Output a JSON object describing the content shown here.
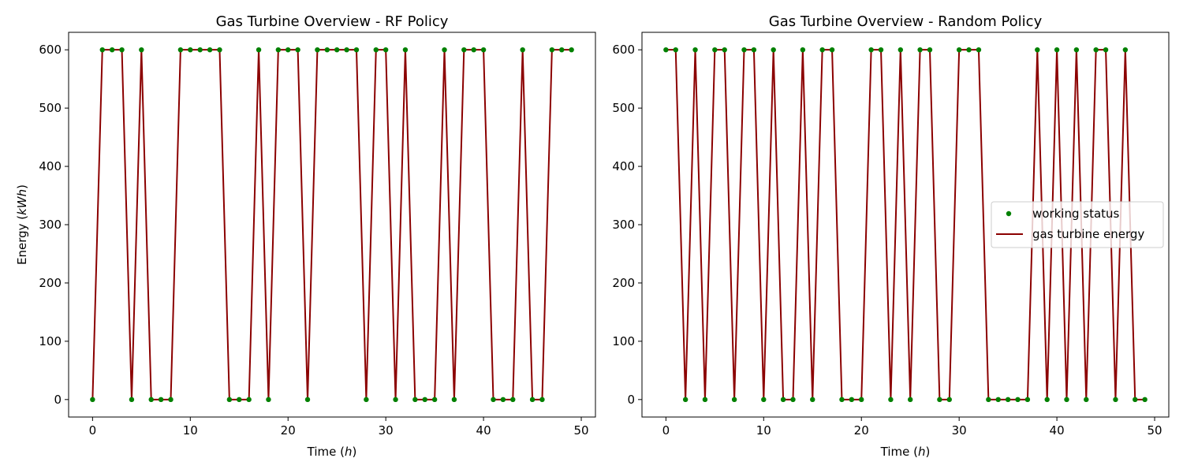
{
  "chart_data": [
    {
      "type": "line",
      "title": "Gas Turbine Overview - RF Policy",
      "xlabel": "Time",
      "xlabel_unit": "h",
      "ylabel": "Energy",
      "ylabel_unit": "kWh",
      "xlim": [
        -2.45,
        51.45
      ],
      "ylim": [
        -30,
        630
      ],
      "xticks": [
        0,
        10,
        20,
        30,
        40,
        50
      ],
      "yticks": [
        0,
        100,
        200,
        300,
        400,
        500,
        600
      ],
      "x": [
        0,
        1,
        2,
        3,
        4,
        5,
        6,
        7,
        8,
        9,
        10,
        11,
        12,
        13,
        14,
        15,
        16,
        17,
        18,
        19,
        20,
        21,
        22,
        23,
        24,
        25,
        26,
        27,
        28,
        29,
        30,
        31,
        32,
        33,
        34,
        35,
        36,
        37,
        38,
        39,
        40,
        41,
        42,
        43,
        44,
        45,
        46,
        47,
        48,
        49
      ],
      "series": [
        {
          "kind": "line",
          "color": "#8b0000",
          "values": [
            0,
            600,
            600,
            600,
            0,
            600,
            0,
            0,
            0,
            600,
            600,
            600,
            600,
            600,
            0,
            0,
            0,
            600,
            0,
            600,
            600,
            600,
            0,
            600,
            600,
            600,
            600,
            600,
            0,
            600,
            600,
            0,
            600,
            0,
            0,
            0,
            600,
            0,
            600,
            600,
            600,
            0,
            0,
            0,
            600,
            0,
            0,
            600,
            600,
            600
          ]
        },
        {
          "kind": "scatter",
          "color": "#008000",
          "values": [
            0,
            600,
            600,
            600,
            0,
            600,
            0,
            0,
            0,
            600,
            600,
            600,
            600,
            600,
            0,
            0,
            0,
            600,
            0,
            600,
            600,
            600,
            0,
            600,
            600,
            600,
            600,
            600,
            0,
            600,
            600,
            0,
            600,
            0,
            0,
            0,
            600,
            0,
            600,
            600,
            600,
            0,
            0,
            0,
            600,
            0,
            0,
            600,
            600,
            600
          ]
        }
      ],
      "grid": false,
      "legend": "none"
    },
    {
      "type": "line",
      "title": "Gas Turbine Overview - Random Policy",
      "xlabel": "Time",
      "xlabel_unit": "h",
      "ylabel": "",
      "xlim": [
        -2.45,
        51.45
      ],
      "ylim": [
        -30,
        630
      ],
      "xticks": [
        0,
        10,
        20,
        30,
        40,
        50
      ],
      "yticks": [
        0,
        100,
        200,
        300,
        400,
        500,
        600
      ],
      "x": [
        0,
        1,
        2,
        3,
        4,
        5,
        6,
        7,
        8,
        9,
        10,
        11,
        12,
        13,
        14,
        15,
        16,
        17,
        18,
        19,
        20,
        21,
        22,
        23,
        24,
        25,
        26,
        27,
        28,
        29,
        30,
        31,
        32,
        33,
        34,
        35,
        36,
        37,
        38,
        39,
        40,
        41,
        42,
        43,
        44,
        45,
        46,
        47,
        48,
        49
      ],
      "series": [
        {
          "name": "gas turbine energy",
          "kind": "line",
          "color": "#8b0000",
          "values": [
            600,
            600,
            0,
            600,
            0,
            600,
            600,
            0,
            600,
            600,
            0,
            600,
            0,
            0,
            600,
            0,
            600,
            600,
            0,
            0,
            0,
            600,
            600,
            0,
            600,
            0,
            600,
            600,
            0,
            0,
            600,
            600,
            600,
            0,
            0,
            0,
            0,
            0,
            600,
            0,
            600,
            0,
            600,
            0,
            600,
            600,
            0,
            600,
            0,
            0
          ]
        },
        {
          "name": "working status",
          "kind": "scatter",
          "color": "#008000",
          "values": [
            600,
            600,
            0,
            600,
            0,
            600,
            600,
            0,
            600,
            600,
            0,
            600,
            0,
            0,
            600,
            0,
            600,
            600,
            0,
            0,
            0,
            600,
            600,
            0,
            600,
            0,
            600,
            600,
            0,
            0,
            600,
            600,
            600,
            0,
            0,
            0,
            0,
            0,
            600,
            0,
            600,
            0,
            600,
            0,
            600,
            600,
            0,
            600,
            0,
            0
          ]
        }
      ],
      "grid": false,
      "legend": "center-right"
    }
  ]
}
